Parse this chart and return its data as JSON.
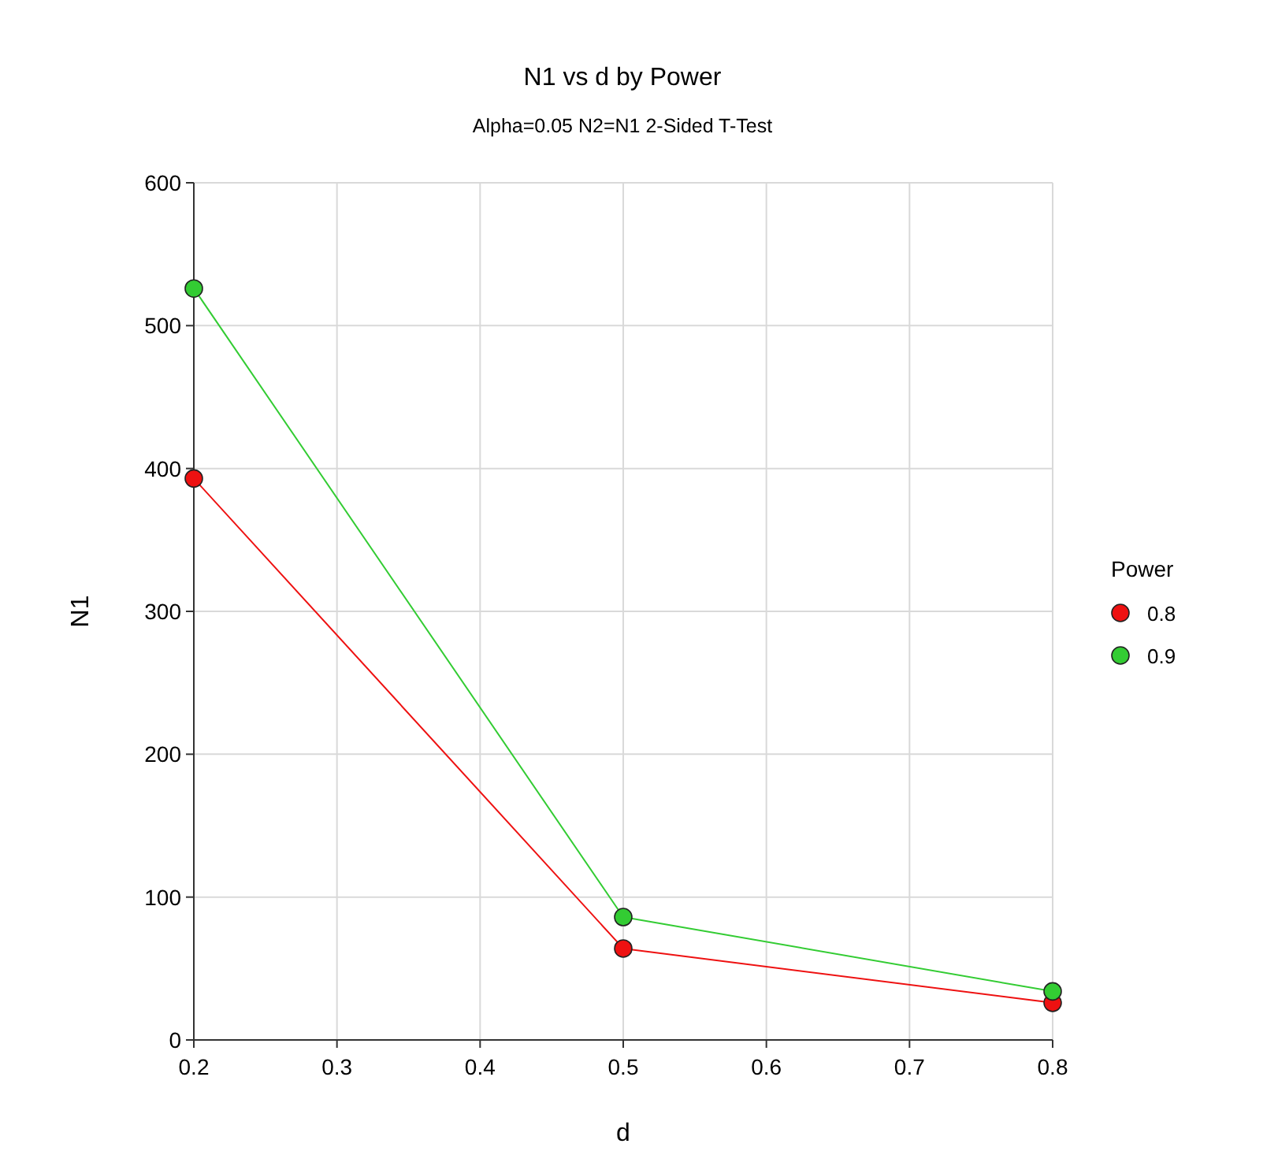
{
  "chart_data": {
    "type": "line",
    "title": "N1 vs d by Power",
    "subtitle": "Alpha=0.05 N2=N1 2-Sided T-Test",
    "xlabel": "d",
    "ylabel": "N1",
    "legend_title": "Power",
    "x": [
      0.2,
      0.5,
      0.8
    ],
    "series": [
      {
        "name": "0.8",
        "color": "#ee1111",
        "values": [
          393,
          64,
          26
        ]
      },
      {
        "name": "0.9",
        "color": "#33cc33",
        "values": [
          526,
          86,
          34
        ]
      }
    ],
    "xlim": [
      0.2,
      0.8
    ],
    "xticks": [
      0.2,
      0.3,
      0.4,
      0.5,
      0.6,
      0.7,
      0.8
    ],
    "ylim": [
      0,
      600
    ],
    "yticks": [
      0,
      100,
      200,
      300,
      400,
      500,
      600
    ],
    "grid": true,
    "legend": "right",
    "marker": "circle",
    "line_style": "solid"
  }
}
